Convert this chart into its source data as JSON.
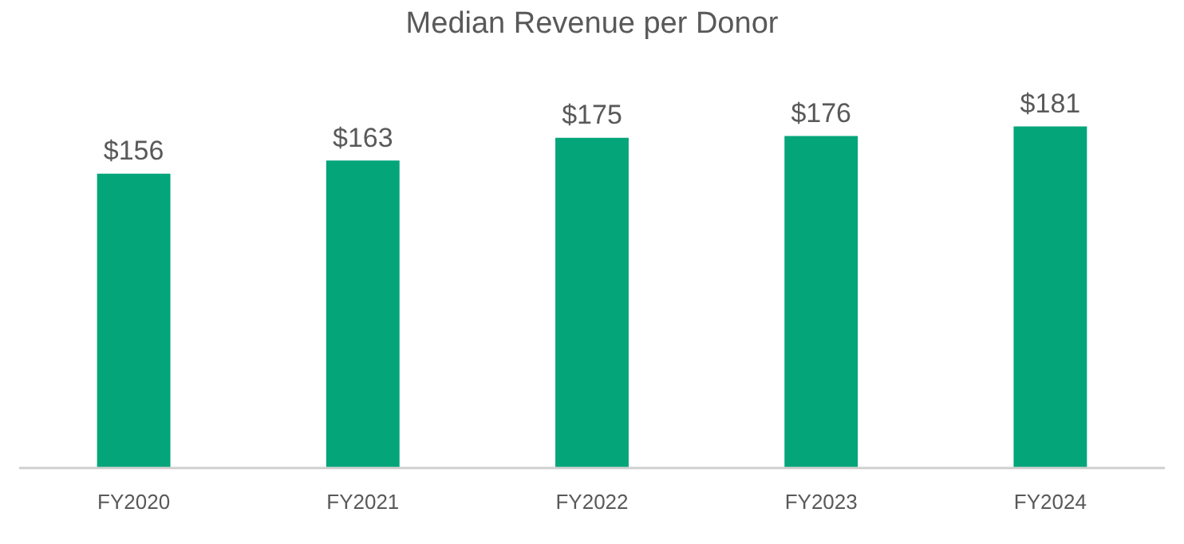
{
  "chart_data": {
    "type": "bar",
    "title": "Median Revenue per Donor",
    "categories": [
      "FY2020",
      "FY2021",
      "FY2022",
      "FY2023",
      "FY2024"
    ],
    "color": "#05a57a",
    "values": [
      156,
      163,
      175,
      176,
      181
    ],
    "value_labels": [
      "$156",
      "$163",
      "$175",
      "$176",
      "$181"
    ],
    "tick_labels": "x",
    "grid": false,
    "legend": false
  }
}
